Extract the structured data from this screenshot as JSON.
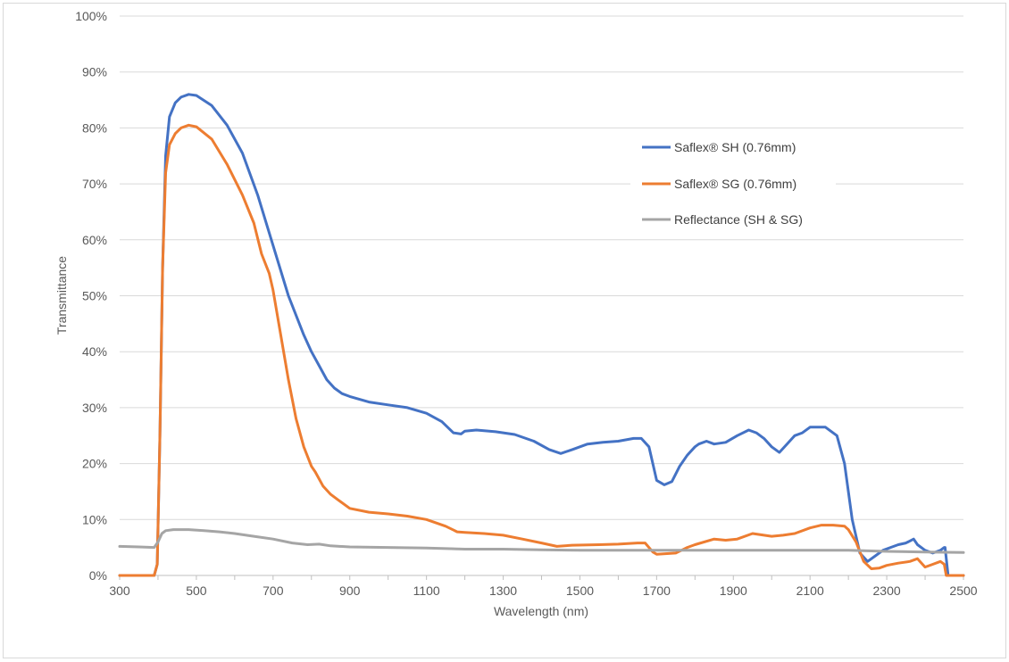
{
  "chart_data": {
    "type": "line",
    "title": "",
    "xlabel": "Wavelength (nm)",
    "ylabel": "Transmittance",
    "xlim": [
      300,
      2500
    ],
    "ylim": [
      0,
      100
    ],
    "xticks": [
      300,
      500,
      700,
      900,
      1100,
      1300,
      1500,
      1700,
      1900,
      2100,
      2300,
      2500
    ],
    "xtick_labels": [
      "300",
      "500",
      "700",
      "900",
      "1100",
      "1300",
      "1500",
      "1700",
      "1900",
      "2100",
      "2300",
      "2500"
    ],
    "yticks": [
      0,
      10,
      20,
      30,
      40,
      50,
      60,
      70,
      80,
      90,
      100
    ],
    "ytick_labels": [
      "0%",
      "10%",
      "20%",
      "30%",
      "40%",
      "50%",
      "60%",
      "70%",
      "80%",
      "90%",
      "100%"
    ],
    "grid": true,
    "legend_position": "top-right",
    "series": [
      {
        "name": "Saflex® SH (0.76mm)",
        "color": "#4472c4",
        "x": [
          300,
          390,
          398,
          405,
          412,
          420,
          430,
          445,
          460,
          480,
          500,
          540,
          580,
          620,
          660,
          700,
          740,
          780,
          800,
          820,
          840,
          860,
          880,
          900,
          950,
          1000,
          1050,
          1100,
          1140,
          1170,
          1190,
          1200,
          1230,
          1280,
          1330,
          1380,
          1420,
          1450,
          1480,
          1520,
          1560,
          1600,
          1640,
          1660,
          1680,
          1700,
          1720,
          1740,
          1760,
          1780,
          1800,
          1810,
          1830,
          1850,
          1880,
          1910,
          1940,
          1960,
          1980,
          2000,
          2020,
          2040,
          2060,
          2080,
          2100,
          2120,
          2140,
          2170,
          2190,
          2210,
          2230,
          2250,
          2270,
          2290,
          2310,
          2330,
          2350,
          2370,
          2380,
          2400,
          2420,
          2440,
          2450,
          2452,
          2460,
          2500
        ],
        "y": [
          0,
          0,
          2,
          25,
          55,
          75,
          82,
          84.5,
          85.5,
          86,
          85.8,
          84,
          80.5,
          75.5,
          68,
          59,
          50,
          43,
          40,
          37.5,
          35,
          33.5,
          32.5,
          32,
          31,
          30.5,
          30,
          29,
          27.5,
          25.5,
          25.3,
          25.8,
          26,
          25.7,
          25.2,
          24,
          22.5,
          21.8,
          22.5,
          23.5,
          23.8,
          24,
          24.5,
          24.5,
          23,
          17,
          16.2,
          16.8,
          19.5,
          21.5,
          23,
          23.5,
          24,
          23.5,
          23.8,
          25,
          26,
          25.5,
          24.5,
          23,
          22,
          23.5,
          25,
          25.5,
          26.5,
          26.5,
          26.5,
          25,
          20,
          10,
          4,
          2.5,
          3.5,
          4.5,
          5,
          5.5,
          5.8,
          6.5,
          5.5,
          4.5,
          4,
          4.5,
          5,
          5,
          0,
          0
        ]
      },
      {
        "name": "Saflex® SG (0.76mm)",
        "color": "#ed7d31",
        "x": [
          300,
          390,
          398,
          405,
          412,
          420,
          430,
          445,
          460,
          480,
          500,
          540,
          580,
          620,
          650,
          670,
          690,
          700,
          720,
          740,
          760,
          780,
          800,
          810,
          830,
          850,
          870,
          900,
          950,
          1000,
          1050,
          1100,
          1150,
          1180,
          1200,
          1250,
          1300,
          1350,
          1400,
          1440,
          1480,
          1550,
          1600,
          1650,
          1670,
          1690,
          1700,
          1750,
          1780,
          1800,
          1850,
          1880,
          1910,
          1950,
          1980,
          2000,
          2030,
          2060,
          2100,
          2130,
          2160,
          2190,
          2200,
          2220,
          2240,
          2260,
          2280,
          2300,
          2330,
          2360,
          2380,
          2400,
          2420,
          2440,
          2450,
          2455,
          2460,
          2500
        ],
        "y": [
          0,
          0,
          2,
          25,
          55,
          72,
          77,
          79,
          80,
          80.5,
          80.2,
          78,
          73.5,
          68,
          63,
          57.5,
          54,
          51,
          43,
          35,
          28,
          23,
          19.5,
          18.5,
          16,
          14.5,
          13.5,
          12,
          11.3,
          11,
          10.6,
          10,
          8.8,
          7.8,
          7.7,
          7.5,
          7.2,
          6.5,
          5.8,
          5.2,
          5.4,
          5.5,
          5.6,
          5.8,
          5.8,
          4.2,
          3.8,
          4,
          5,
          5.5,
          6.5,
          6.3,
          6.5,
          7.5,
          7.2,
          7,
          7.2,
          7.5,
          8.5,
          9,
          9,
          8.8,
          8.2,
          6,
          2.5,
          1.2,
          1.3,
          1.8,
          2.2,
          2.5,
          3,
          1.5,
          2,
          2.5,
          2,
          0,
          0,
          0
        ]
      },
      {
        "name": "Reflectance (SH & SG)",
        "color": "#a5a5a5",
        "x": [
          300,
          350,
          390,
          400,
          410,
          420,
          440,
          480,
          520,
          560,
          600,
          650,
          700,
          750,
          790,
          820,
          850,
          900,
          1000,
          1100,
          1200,
          1300,
          1400,
          1500,
          1600,
          1700,
          1800,
          1900,
          2000,
          2100,
          2200,
          2300,
          2400,
          2500
        ],
        "y": [
          5.2,
          5.1,
          5,
          6,
          7.5,
          8,
          8.2,
          8.2,
          8,
          7.8,
          7.5,
          7,
          6.5,
          5.8,
          5.5,
          5.6,
          5.3,
          5.1,
          5,
          4.9,
          4.7,
          4.7,
          4.6,
          4.5,
          4.5,
          4.5,
          4.5,
          4.5,
          4.5,
          4.5,
          4.5,
          4.3,
          4.2,
          4.1
        ]
      }
    ]
  }
}
